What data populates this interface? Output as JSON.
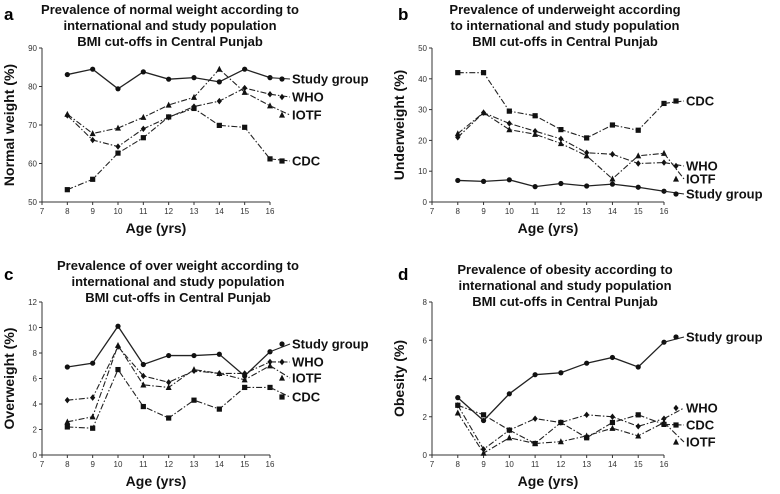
{
  "chart_data": [
    {
      "type": "line",
      "panel_label": "a",
      "title": [
        "Prevalence of normal weight according to",
        "international and study population",
        "BMI cut-offs in Central Punjab"
      ],
      "xlabel": "Age (yrs)",
      "ylabel": "Normal weight (%)",
      "xlim": [
        7,
        16
      ],
      "ylim": [
        50,
        90
      ],
      "xticks": [
        "7",
        "8",
        "9",
        "10",
        "11",
        "12",
        "13",
        "14",
        "15",
        "16"
      ],
      "yticks": [
        "50",
        "60",
        "70",
        "80",
        "90"
      ],
      "x": [
        8,
        9,
        10,
        11,
        12,
        13,
        14,
        15,
        16
      ],
      "series": [
        {
          "name": "Study group",
          "marker": "circle",
          "style": "solid",
          "values": [
            83.1,
            84.5,
            79.4,
            83.8,
            81.9,
            82.3,
            81.2,
            84.5,
            82.3
          ]
        },
        {
          "name": "WHO",
          "marker": "diamond",
          "style": "dashdot",
          "values": [
            72.5,
            66.1,
            64.4,
            69.0,
            72.0,
            74.8,
            76.2,
            79.6,
            78.0
          ]
        },
        {
          "name": "IOTF",
          "marker": "triangle",
          "style": "dashdot",
          "values": [
            72.8,
            67.8,
            69.2,
            72.0,
            75.2,
            77.2,
            84.5,
            78.5,
            75.0
          ]
        },
        {
          "name": "CDC",
          "marker": "square",
          "style": "dashdot",
          "values": [
            53.2,
            55.9,
            62.7,
            66.7,
            72.1,
            74.3,
            69.9,
            69.4,
            61.2
          ]
        }
      ],
      "legend_order": [
        "Study group",
        "WHO",
        "IOTF",
        "CDC"
      ]
    },
    {
      "type": "line",
      "panel_label": "b",
      "title": [
        "Prevalence of underweight according",
        "to international and study population",
        "BMI cut-offs in Central Punjab"
      ],
      "xlabel": "Age (yrs)",
      "ylabel": "Underweight (%)",
      "xlim": [
        7,
        16
      ],
      "ylim": [
        0,
        50
      ],
      "xticks": [
        "7",
        "8",
        "9",
        "10",
        "11",
        "12",
        "13",
        "14",
        "15",
        "16"
      ],
      "yticks": [
        "0",
        "10",
        "20",
        "30",
        "40",
        "50"
      ],
      "x": [
        8,
        9,
        10,
        11,
        12,
        13,
        14,
        15,
        16
      ],
      "series": [
        {
          "name": "CDC",
          "marker": "square",
          "style": "dashdot",
          "values": [
            42.0,
            42.0,
            29.5,
            28.0,
            23.5,
            20.8,
            25.0,
            23.3,
            32.0
          ]
        },
        {
          "name": "IOTF",
          "marker": "triangle",
          "style": "dashdot",
          "values": [
            22.2,
            29.0,
            23.5,
            22.0,
            19.0,
            15.0,
            7.5,
            15.0,
            15.8
          ]
        },
        {
          "name": "WHO",
          "marker": "diamond",
          "style": "dashdot",
          "values": [
            21.0,
            29.0,
            25.5,
            23.0,
            20.5,
            16.0,
            15.5,
            12.5,
            12.8
          ]
        },
        {
          "name": "Study group",
          "marker": "circle",
          "style": "solid",
          "values": [
            7.0,
            6.7,
            7.2,
            5.0,
            6.0,
            5.2,
            5.8,
            4.8,
            3.5
          ]
        }
      ],
      "legend_order": [
        "CDC",
        "IOTF",
        "WHO",
        "Study group"
      ]
    },
    {
      "type": "line",
      "panel_label": "c",
      "title": [
        "Prevalence of over weight according to",
        "international and study population",
        "BMI cut-offs in Central Punjab"
      ],
      "xlabel": "Age (yrs)",
      "ylabel": "Overweight (%)",
      "xlim": [
        7,
        16
      ],
      "ylim": [
        0,
        12
      ],
      "xticks": [
        "7",
        "8",
        "9",
        "10",
        "11",
        "12",
        "13",
        "14",
        "15",
        "16"
      ],
      "yticks": [
        "0",
        "2",
        "4",
        "6",
        "8",
        "10",
        "12"
      ],
      "x": [
        8,
        9,
        10,
        11,
        12,
        13,
        14,
        15,
        16
      ],
      "series": [
        {
          "name": "Study group",
          "marker": "circle",
          "style": "solid",
          "values": [
            6.9,
            7.2,
            10.1,
            7.1,
            7.8,
            7.8,
            7.9,
            6.2,
            8.1
          ]
        },
        {
          "name": "WHO",
          "marker": "diamond",
          "style": "dashdot",
          "values": [
            4.3,
            4.5,
            8.5,
            6.2,
            5.7,
            6.6,
            6.4,
            6.4,
            7.3
          ]
        },
        {
          "name": "IOTF",
          "marker": "triangle",
          "style": "dashdot",
          "values": [
            2.6,
            3.0,
            8.6,
            5.5,
            5.3,
            6.7,
            6.4,
            5.9,
            7.0
          ]
        },
        {
          "name": "CDC",
          "marker": "square",
          "style": "dashdot",
          "values": [
            2.2,
            2.1,
            6.7,
            3.8,
            2.9,
            4.3,
            3.6,
            5.3,
            5.3
          ]
        }
      ],
      "legend_order": [
        "Study group",
        "WHO",
        "IOTF",
        "CDC"
      ]
    },
    {
      "type": "line",
      "panel_label": "d",
      "title": [
        "Prevalence of obesity according to",
        "international and study population",
        "BMI cut-offs in Central Punjab"
      ],
      "xlabel": "Age (yrs)",
      "ylabel": "Obesity (%)",
      "xlim": [
        7,
        16
      ],
      "ylim": [
        0,
        8
      ],
      "xticks": [
        "7",
        "8",
        "9",
        "10",
        "11",
        "12",
        "13",
        "14",
        "15",
        "16"
      ],
      "yticks": [
        "0",
        "2",
        "4",
        "6",
        "8"
      ],
      "x": [
        8,
        9,
        10,
        11,
        12,
        13,
        14,
        15,
        16
      ],
      "series": [
        {
          "name": "Study group",
          "marker": "circle",
          "style": "solid",
          "values": [
            3.0,
            1.8,
            3.2,
            4.2,
            4.3,
            4.8,
            5.1,
            4.6,
            5.9
          ]
        },
        {
          "name": "WHO",
          "marker": "diamond",
          "style": "dashdot",
          "values": [
            2.6,
            0.3,
            1.3,
            1.9,
            1.7,
            2.1,
            2.0,
            1.5,
            1.9
          ]
        },
        {
          "name": "CDC",
          "marker": "square",
          "style": "dashdot",
          "values": [
            2.6,
            2.1,
            1.3,
            0.6,
            1.7,
            0.9,
            1.7,
            2.1,
            1.6
          ]
        },
        {
          "name": "IOTF",
          "marker": "triangle",
          "style": "dashdot",
          "values": [
            2.2,
            0.1,
            0.9,
            0.6,
            0.7,
            1.0,
            1.4,
            1.0,
            1.7
          ]
        }
      ],
      "legend_order": [
        "Study group",
        "WHO",
        "CDC",
        "IOTF"
      ]
    }
  ]
}
